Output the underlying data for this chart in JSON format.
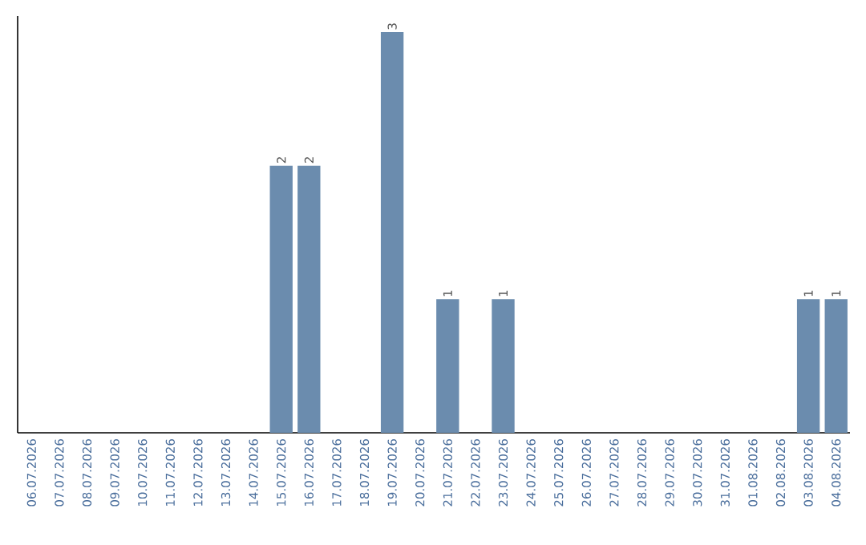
{
  "chart_data": {
    "type": "bar",
    "categories": [
      "06.07.2026",
      "07.07.2026",
      "08.07.2026",
      "09.07.2026",
      "10.07.2026",
      "11.07.2026",
      "12.07.2026",
      "13.07.2026",
      "14.07.2026",
      "15.07.2026",
      "16.07.2026",
      "17.07.2026",
      "18.07.2026",
      "19.07.2026",
      "20.07.2026",
      "21.07.2026",
      "22.07.2026",
      "23.07.2026",
      "24.07.2026",
      "25.07.2026",
      "26.07.2026",
      "27.07.2026",
      "28.07.2026",
      "29.07.2026",
      "30.07.2026",
      "31.07.2026",
      "01.08.2026",
      "02.08.2026",
      "03.08.2026",
      "04.08.2026"
    ],
    "values": [
      0,
      0,
      0,
      0,
      0,
      0,
      0,
      0,
      0,
      2,
      2,
      0,
      0,
      3,
      0,
      1,
      0,
      1,
      0,
      0,
      0,
      0,
      0,
      0,
      0,
      0,
      0,
      0,
      1,
      1
    ],
    "value_labels": [
      null,
      null,
      null,
      null,
      null,
      null,
      null,
      null,
      null,
      "2",
      "2",
      null,
      null,
      "3",
      null,
      "1",
      null,
      "1",
      null,
      null,
      null,
      null,
      null,
      null,
      null,
      null,
      null,
      null,
      "1",
      "1"
    ],
    "color": "#6b8cae"
  }
}
